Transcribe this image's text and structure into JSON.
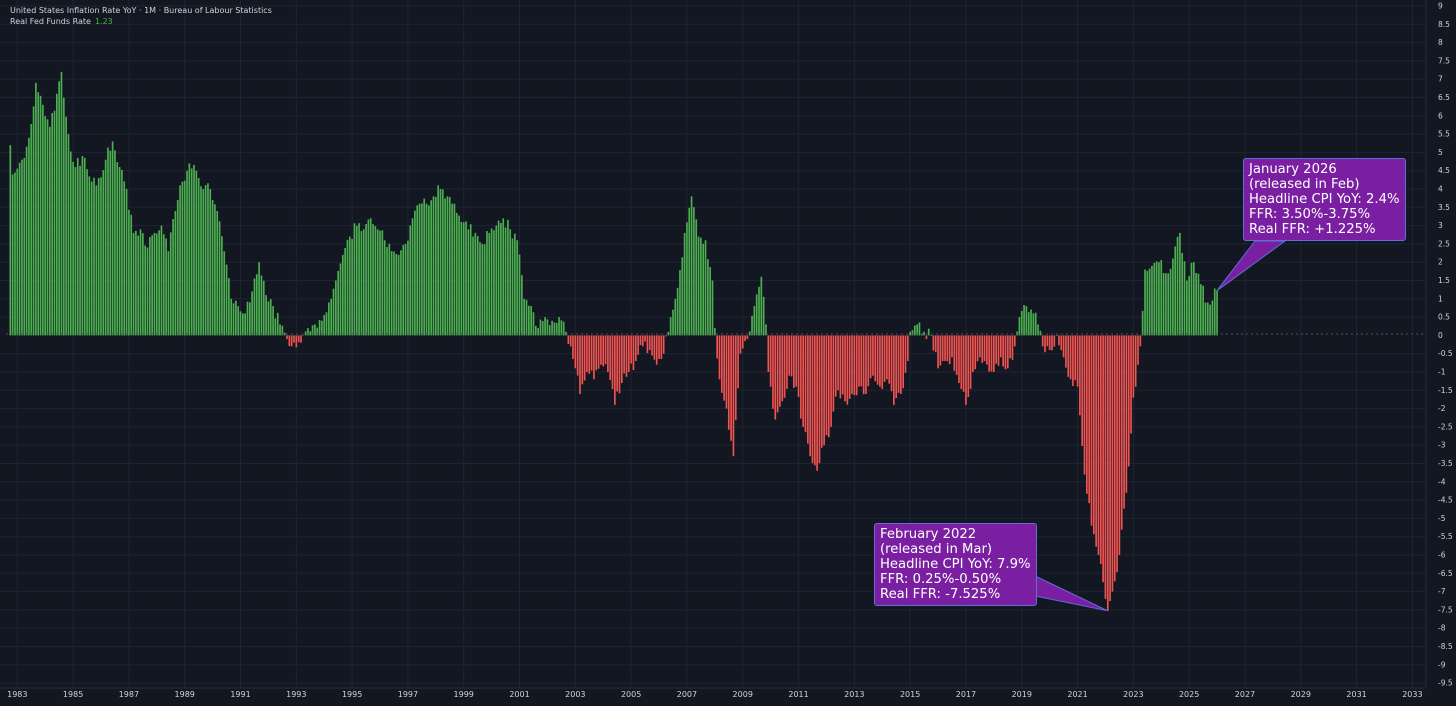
{
  "header": {
    "title": "United States Inflation Rate YoY · 1M · Bureau of Labour Statistics",
    "indicator_label": "Real Fed Funds Rate",
    "indicator_value": "1.23"
  },
  "colors": {
    "background": "#131722",
    "positive": "#4caf50",
    "negative": "#f05350",
    "callout_bg": "#7b1fa2",
    "callout_border": "#5e6fd8",
    "axis_text": "#d1d4dc",
    "grid": "#1f2433"
  },
  "annotations": [
    {
      "id": "jan-2026",
      "lines": [
        "January 2026",
        "(released in Feb)",
        "Headline CPI YoY: 2.4%",
        "FFR: 3.50%-3.75%",
        "Real FFR: +1.225%"
      ],
      "target_date": "2026-01"
    },
    {
      "id": "feb-2022",
      "lines": [
        "February 2022",
        "(released in Mar)",
        "Headline CPI YoY: 7.9%",
        "FFR: 0.25%-0.50%",
        "Real FFR: -7.525%"
      ],
      "target_date": "2022-02"
    }
  ],
  "chart_data": {
    "type": "bar",
    "series_name": "Real Fed Funds Rate",
    "frequency": "monthly",
    "x_ticks": [
      "1983",
      "1985",
      "1987",
      "1989",
      "1991",
      "1993",
      "1995",
      "1997",
      "1999",
      "2001",
      "2003",
      "2005",
      "2007",
      "2009",
      "2011",
      "2013",
      "2015",
      "2017",
      "2019",
      "2021",
      "2023",
      "2025",
      "2027",
      "2029",
      "2031",
      "2033"
    ],
    "y_ticks": [
      "9",
      "8.5",
      "8",
      "7.5",
      "7",
      "6.5",
      "6",
      "5.5",
      "5",
      "4.5",
      "4",
      "3.5",
      "3",
      "2.5",
      "2",
      "1.5",
      "1",
      "0.5",
      "0",
      "-0.5",
      "-1",
      "-1.5",
      "-2",
      "-2.5",
      "-3",
      "-3.5",
      "-4",
      "-4.5",
      "-5",
      "-5.5",
      "-6",
      "-6.5",
      "-7",
      "-7.5",
      "-8",
      "-8.5",
      "-9",
      "-9.5"
    ],
    "ylim": [
      -9.6,
      9
    ],
    "xlim": [
      "1982-09",
      "2033-06"
    ],
    "grid": true,
    "anchors": [
      [
        "1982-10",
        5.2
      ],
      [
        "1982-11",
        4.4
      ],
      [
        "1983-03",
        4.8
      ],
      [
        "1983-06",
        5.4
      ],
      [
        "1983-09",
        6.9
      ],
      [
        "1983-12",
        6.3
      ],
      [
        "1984-03",
        5.7
      ],
      [
        "1984-06",
        6.6
      ],
      [
        "1984-08",
        7.2
      ],
      [
        "1984-11",
        5.5
      ],
      [
        "1985-02",
        4.6
      ],
      [
        "1985-05",
        4.9
      ],
      [
        "1985-09",
        4.2
      ],
      [
        "1985-12",
        4.3
      ],
      [
        "1986-03",
        4.8
      ],
      [
        "1986-06",
        5.3
      ],
      [
        "1986-09",
        4.6
      ],
      [
        "1986-12",
        4.0
      ],
      [
        "1987-03",
        2.8
      ],
      [
        "1987-06",
        2.9
      ],
      [
        "1987-09",
        2.4
      ],
      [
        "1987-12",
        2.8
      ],
      [
        "1988-03",
        3.0
      ],
      [
        "1988-06",
        2.3
      ],
      [
        "1988-09",
        3.4
      ],
      [
        "1988-12",
        4.2
      ],
      [
        "1989-03",
        4.7
      ],
      [
        "1989-06",
        4.5
      ],
      [
        "1989-09",
        4.0
      ],
      [
        "1989-12",
        4.0
      ],
      [
        "1990-03",
        3.4
      ],
      [
        "1990-06",
        2.3
      ],
      [
        "1990-09",
        1.0
      ],
      [
        "1990-12",
        0.8
      ],
      [
        "1991-03",
        0.6
      ],
      [
        "1991-06",
        1.2
      ],
      [
        "1991-09",
        2.0
      ],
      [
        "1991-12",
        1.1
      ],
      [
        "1992-03",
        0.8
      ],
      [
        "1992-06",
        0.3
      ],
      [
        "1992-09",
        -0.1
      ],
      [
        "1992-12",
        -0.2
      ],
      [
        "1993-03",
        -0.2
      ],
      [
        "1993-06",
        0.2
      ],
      [
        "1993-09",
        0.3
      ],
      [
        "1993-12",
        0.4
      ],
      [
        "1994-03",
        0.9
      ],
      [
        "1994-06",
        1.5
      ],
      [
        "1994-09",
        2.2
      ],
      [
        "1994-12",
        2.7
      ],
      [
        "1995-03",
        3.0
      ],
      [
        "1995-06",
        2.9
      ],
      [
        "1995-09",
        3.2
      ],
      [
        "1995-12",
        2.9
      ],
      [
        "1996-03",
        2.6
      ],
      [
        "1996-06",
        2.3
      ],
      [
        "1996-09",
        2.2
      ],
      [
        "1996-12",
        2.5
      ],
      [
        "1997-03",
        3.2
      ],
      [
        "1997-06",
        3.6
      ],
      [
        "1997-09",
        3.6
      ],
      [
        "1997-12",
        3.8
      ],
      [
        "1998-03",
        4.0
      ],
      [
        "1998-06",
        3.8
      ],
      [
        "1998-09",
        3.6
      ],
      [
        "1998-12",
        3.1
      ],
      [
        "1999-03",
        2.9
      ],
      [
        "1999-06",
        2.8
      ],
      [
        "1999-09",
        2.5
      ],
      [
        "1999-12",
        2.8
      ],
      [
        "2000-03",
        3.0
      ],
      [
        "2000-06",
        3.2
      ],
      [
        "2000-09",
        2.9
      ],
      [
        "2000-12",
        2.6
      ],
      [
        "2001-03",
        1.0
      ],
      [
        "2001-06",
        0.8
      ],
      [
        "2001-09",
        0.2
      ],
      [
        "2001-12",
        0.5
      ],
      [
        "2002-03",
        0.4
      ],
      [
        "2002-06",
        0.5
      ],
      [
        "2002-09",
        0.1
      ],
      [
        "2002-11",
        -0.3
      ],
      [
        "2003-01",
        -0.9
      ],
      [
        "2003-03",
        -1.6
      ],
      [
        "2003-06",
        -1.0
      ],
      [
        "2003-09",
        -1.2
      ],
      [
        "2003-12",
        -0.8
      ],
      [
        "2004-03",
        -1.0
      ],
      [
        "2004-06",
        -1.9
      ],
      [
        "2004-09",
        -1.3
      ],
      [
        "2004-12",
        -1.0
      ],
      [
        "2005-03",
        -0.7
      ],
      [
        "2005-06",
        -0.3
      ],
      [
        "2005-09",
        -0.4
      ],
      [
        "2005-12",
        -0.8
      ],
      [
        "2006-03",
        -0.5
      ],
      [
        "2006-06",
        0.5
      ],
      [
        "2006-09",
        1.3
      ],
      [
        "2006-12",
        2.8
      ],
      [
        "2007-03",
        3.8
      ],
      [
        "2007-06",
        2.7
      ],
      [
        "2007-09",
        2.6
      ],
      [
        "2007-12",
        1.5
      ],
      [
        "2008-01",
        0.2
      ],
      [
        "2008-03",
        -1.2
      ],
      [
        "2008-06",
        -2.0
      ],
      [
        "2008-09",
        -3.3
      ],
      [
        "2008-12",
        -0.5
      ],
      [
        "2009-03",
        -0.1
      ],
      [
        "2009-06",
        0.8
      ],
      [
        "2009-09",
        1.6
      ],
      [
        "2009-11",
        0.3
      ],
      [
        "2009-12",
        -1.0
      ],
      [
        "2010-03",
        -2.3
      ],
      [
        "2010-06",
        -1.8
      ],
      [
        "2010-09",
        -1.1
      ],
      [
        "2010-12",
        -1.4
      ],
      [
        "2011-03",
        -2.5
      ],
      [
        "2011-06",
        -3.3
      ],
      [
        "2011-09",
        -3.7
      ],
      [
        "2011-12",
        -3.0
      ],
      [
        "2012-03",
        -2.5
      ],
      [
        "2012-06",
        -1.5
      ],
      [
        "2012-09",
        -1.8
      ],
      [
        "2012-12",
        -1.6
      ],
      [
        "2013-03",
        -1.4
      ],
      [
        "2013-06",
        -1.6
      ],
      [
        "2013-09",
        -1.1
      ],
      [
        "2013-12",
        -1.4
      ],
      [
        "2014-03",
        -1.2
      ],
      [
        "2014-06",
        -1.9
      ],
      [
        "2014-09",
        -1.6
      ],
      [
        "2014-12",
        -0.7
      ],
      [
        "2015-01",
        0.1
      ],
      [
        "2015-04",
        0.3
      ],
      [
        "2015-07",
        0.1
      ],
      [
        "2015-10",
        0.0
      ],
      [
        "2016-01",
        -0.9
      ],
      [
        "2016-04",
        -0.7
      ],
      [
        "2016-07",
        -0.6
      ],
      [
        "2016-10",
        -1.3
      ],
      [
        "2017-01",
        -1.9
      ],
      [
        "2017-04",
        -1.0
      ],
      [
        "2017-07",
        -0.6
      ],
      [
        "2017-10",
        -0.8
      ],
      [
        "2018-01",
        -1.0
      ],
      [
        "2018-04",
        -0.6
      ],
      [
        "2018-07",
        -0.9
      ],
      [
        "2018-10",
        -0.3
      ],
      [
        "2018-12",
        0.5
      ],
      [
        "2019-03",
        0.8
      ],
      [
        "2019-06",
        0.6
      ],
      [
        "2019-08",
        0.3
      ],
      [
        "2019-10",
        -0.3
      ],
      [
        "2020-01",
        -0.4
      ],
      [
        "2020-04",
        0.0
      ],
      [
        "2020-07",
        -0.6
      ],
      [
        "2020-10",
        -1.2
      ],
      [
        "2021-01",
        -1.4
      ],
      [
        "2021-04",
        -3.8
      ],
      [
        "2021-07",
        -5.2
      ],
      [
        "2021-10",
        -6.0
      ],
      [
        "2022-01",
        -7.2
      ],
      [
        "2022-02",
        -7.525
      ],
      [
        "2022-04",
        -7.0
      ],
      [
        "2022-07",
        -6.0
      ],
      [
        "2022-10",
        -4.3
      ],
      [
        "2023-01",
        -1.7
      ],
      [
        "2023-04",
        -0.3
      ],
      [
        "2023-06",
        1.8
      ],
      [
        "2023-09",
        1.9
      ],
      [
        "2023-12",
        2.0
      ],
      [
        "2024-03",
        1.7
      ],
      [
        "2024-06",
        2.1
      ],
      [
        "2024-09",
        2.8
      ],
      [
        "2024-12",
        1.5
      ],
      [
        "2025-03",
        2.0
      ],
      [
        "2025-06",
        1.4
      ],
      [
        "2025-09",
        0.9
      ],
      [
        "2026-01",
        1.225
      ]
    ]
  }
}
